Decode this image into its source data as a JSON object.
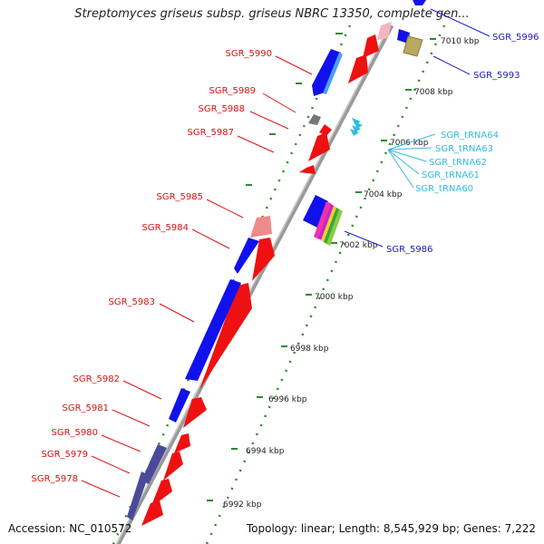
{
  "title": "Streptomyces griseus subsp. griseus NBRC 13350, complete gen...",
  "footer": {
    "accession": "Accession: NC_010572",
    "topology": "Topology: linear; Length: 8,545,929 bp; Genes: 7,222"
  },
  "scale_labels": [
    {
      "label": "7010 kbp",
      "kbp": 7010
    },
    {
      "label": "7008 kbp",
      "kbp": 7008
    },
    {
      "label": "7006 kbp",
      "kbp": 7006
    },
    {
      "label": "7004 kbp",
      "kbp": 7004
    },
    {
      "label": "7002 kbp",
      "kbp": 7002
    },
    {
      "label": "7000 kbp",
      "kbp": 7000
    },
    {
      "label": "6998 kbp",
      "kbp": 6998
    },
    {
      "label": "6996 kbp",
      "kbp": 6996
    },
    {
      "label": "6994 kbp",
      "kbp": 6994
    },
    {
      "label": "6992 kbp",
      "kbp": 6992
    }
  ],
  "gene_labels": [
    {
      "name": "SGR_5996",
      "color": "#1a1acc",
      "side": "right"
    },
    {
      "name": "SGR_5993",
      "color": "#1a1acc",
      "side": "right"
    },
    {
      "name": "SGR_tRNA64",
      "color": "#33bbe0",
      "side": "right"
    },
    {
      "name": "SGR_tRNA63",
      "color": "#33bbe0",
      "side": "right"
    },
    {
      "name": "SGR_tRNA62",
      "color": "#33bbe0",
      "side": "right"
    },
    {
      "name": "SGR_tRNA61",
      "color": "#33bbe0",
      "side": "right"
    },
    {
      "name": "SGR_tRNA60",
      "color": "#33bbe0",
      "side": "right"
    },
    {
      "name": "SGR_5986",
      "color": "#1a1acc",
      "side": "right"
    },
    {
      "name": "SGR_5990",
      "color": "#dd1111",
      "side": "left"
    },
    {
      "name": "SGR_5989",
      "color": "#dd1111",
      "side": "left"
    },
    {
      "name": "SGR_5988",
      "color": "#dd1111",
      "side": "left"
    },
    {
      "name": "SGR_5987",
      "color": "#dd1111",
      "side": "left"
    },
    {
      "name": "SGR_5985",
      "color": "#dd1111",
      "side": "left"
    },
    {
      "name": "SGR_5984",
      "color": "#dd1111",
      "side": "left"
    },
    {
      "name": "SGR_5983",
      "color": "#dd1111",
      "side": "left"
    },
    {
      "name": "SGR_5982",
      "color": "#dd1111",
      "side": "left"
    },
    {
      "name": "SGR_5981",
      "color": "#dd1111",
      "side": "left"
    },
    {
      "name": "SGR_5980",
      "color": "#dd1111",
      "side": "left"
    },
    {
      "name": "SGR_5979",
      "color": "#dd1111",
      "side": "left"
    },
    {
      "name": "SGR_5978",
      "color": "#dd1111",
      "side": "left"
    }
  ],
  "colors": {
    "backbone": "#8a8a8a",
    "cds_forward": "#ee1111",
    "cds_reverse": "#1111ee",
    "trna": "#33bbe0",
    "dots": "#2e8b2e"
  }
}
